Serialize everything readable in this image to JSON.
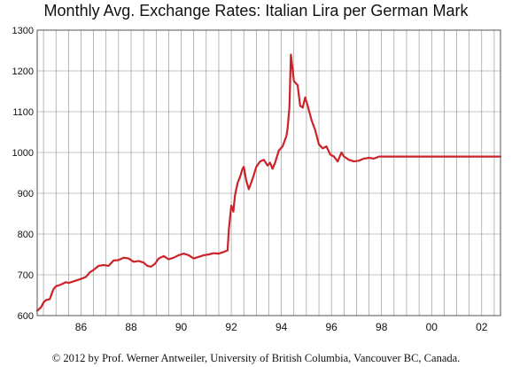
{
  "chart_data": {
    "type": "line",
    "title": "Monthly Avg. Exchange Rates: Italian Lira per German Mark",
    "xlabel": "",
    "ylabel": "",
    "xlim": [
      1984.75,
      2003.25
    ],
    "ylim": [
      600,
      1300
    ],
    "y_ticks": [
      600,
      700,
      800,
      900,
      1000,
      1100,
      1200,
      1300
    ],
    "x_tick_values": [
      1986,
      1988,
      1990,
      1992,
      1994,
      1996,
      1998,
      2000,
      2002
    ],
    "x_tick_labels": [
      "86",
      "88",
      "90",
      "92",
      "94",
      "96",
      "98",
      "00",
      "02"
    ],
    "grid": true,
    "legend": "none",
    "series_color": "#cc2229",
    "series": [
      {
        "x": [
          1984.75,
          1984.9,
          1985.0,
          1985.1,
          1985.25,
          1985.4,
          1985.5,
          1985.7,
          1985.9,
          1986.0,
          1986.2,
          1986.5,
          1986.7,
          1986.85,
          1987.0,
          1987.2,
          1987.4,
          1987.6,
          1987.8,
          1988.0,
          1988.2,
          1988.4,
          1988.6,
          1988.8,
          1989.0,
          1989.15,
          1989.3,
          1989.45,
          1989.6,
          1989.8,
          1990.0,
          1990.2,
          1990.4,
          1990.6,
          1990.8,
          1991.0,
          1991.2,
          1991.4,
          1991.6,
          1991.8,
          1992.0,
          1992.2,
          1992.35,
          1992.4,
          1992.5,
          1992.58,
          1992.65,
          1992.75,
          1992.85,
          1992.95,
          1993.0,
          1993.1,
          1993.2,
          1993.35,
          1993.5,
          1993.65,
          1993.8,
          1993.95,
          1994.05,
          1994.15,
          1994.25,
          1994.4,
          1994.55,
          1994.7,
          1994.75,
          1994.82,
          1994.88,
          1995.0,
          1995.15,
          1995.25,
          1995.35,
          1995.45,
          1995.55,
          1995.7,
          1995.85,
          1996.0,
          1996.15,
          1996.3,
          1996.45,
          1996.6,
          1996.75,
          1996.9,
          1997.0,
          1997.2,
          1997.4,
          1997.6,
          1997.8,
          1998.0,
          1998.2,
          1998.4,
          1999.0,
          2000.0,
          2001.0,
          2002.0,
          2003.0,
          2003.25
        ],
        "y": [
          612,
          620,
          632,
          638,
          640,
          665,
          672,
          676,
          682,
          680,
          684,
          690,
          695,
          706,
          712,
          722,
          724,
          722,
          735,
          736,
          742,
          740,
          732,
          734,
          730,
          722,
          720,
          727,
          740,
          746,
          738,
          742,
          748,
          752,
          748,
          740,
          744,
          748,
          750,
          753,
          752,
          756,
          760,
          810,
          870,
          855,
          895,
          925,
          940,
          960,
          965,
          930,
          910,
          935,
          965,
          978,
          982,
          968,
          975,
          960,
          975,
          1005,
          1015,
          1040,
          1060,
          1110,
          1240,
          1175,
          1165,
          1115,
          1110,
          1135,
          1115,
          1080,
          1055,
          1020,
          1010,
          1015,
          995,
          990,
          978,
          1000,
          990,
          982,
          978,
          980,
          985,
          987,
          985,
          990,
          990,
          990,
          990,
          990,
          990,
          990
        ]
      }
    ]
  },
  "footer": {
    "copyright": "© 2012 by Prof. Werner Antweiler, University of British Columbia, Vancouver BC, Canada."
  }
}
